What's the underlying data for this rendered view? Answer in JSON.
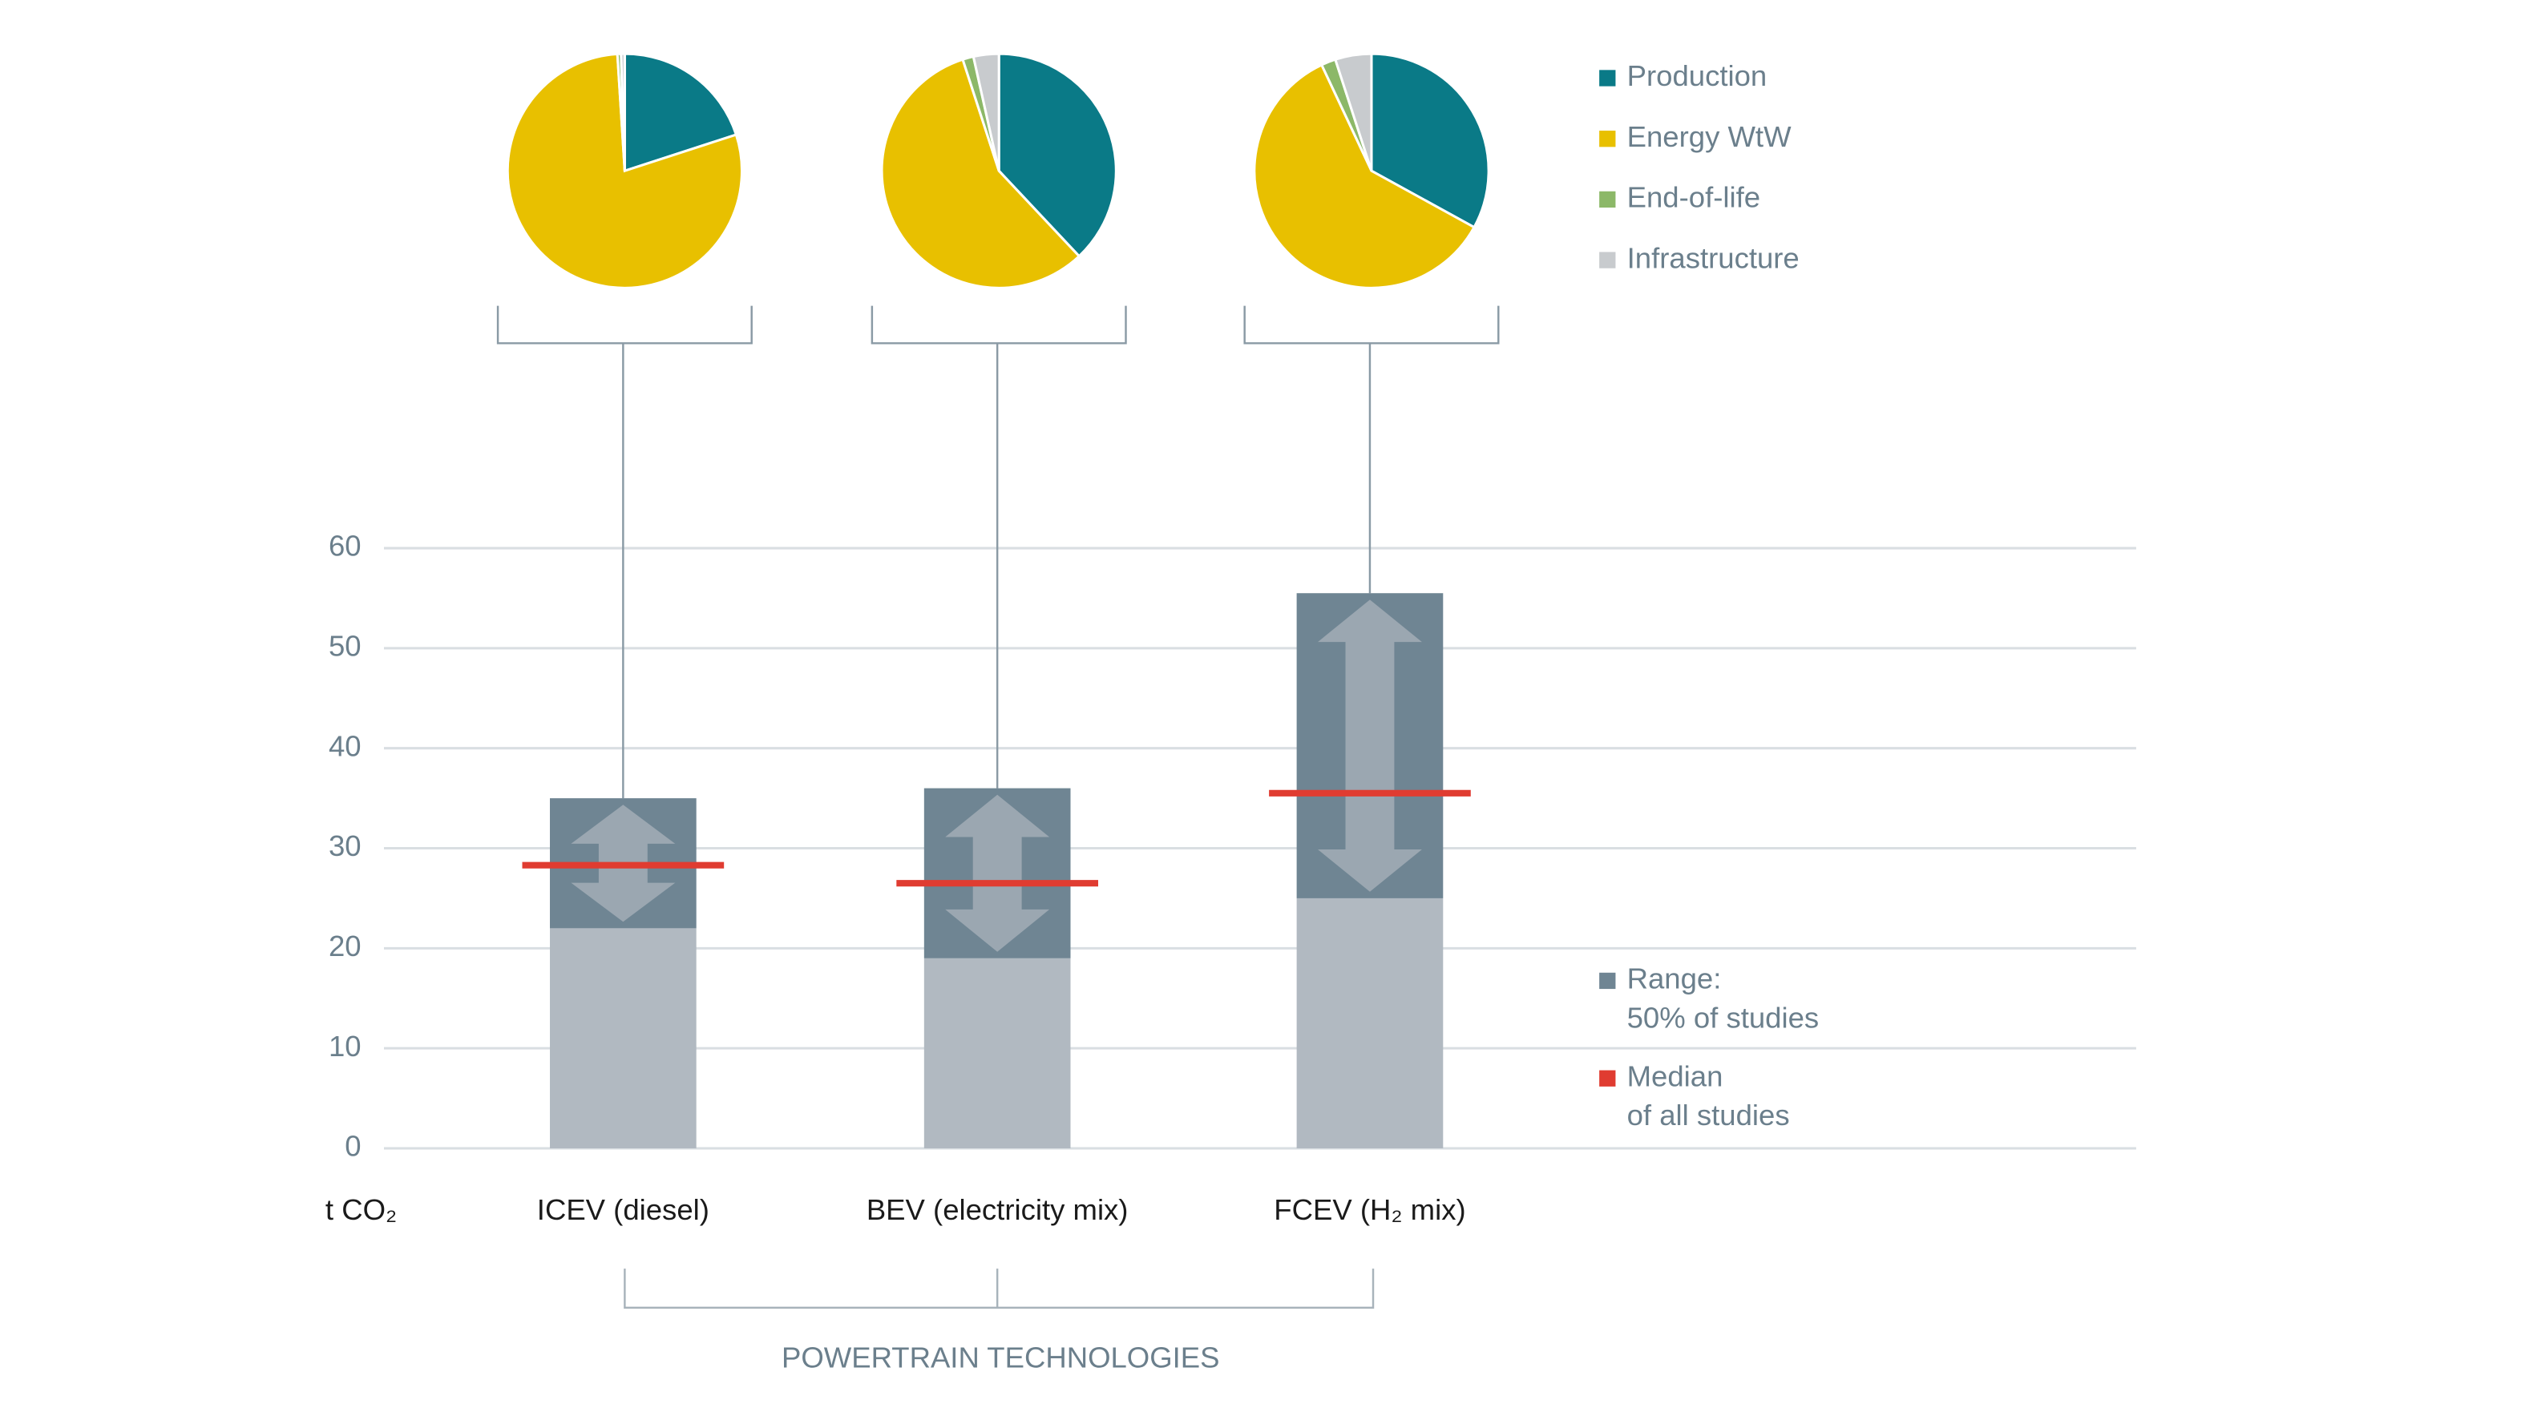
{
  "chart_data": {
    "type": "floating-bar",
    "categories": [
      "ICEV (diesel)",
      "BEV (electricity mix)",
      "FCEV (H₂ mix)"
    ],
    "low": [
      22,
      19,
      25
    ],
    "high": [
      35,
      36,
      55.5
    ],
    "median": [
      28.3,
      26.5,
      35.5
    ],
    "ylim": [
      0,
      60
    ],
    "yticks": [
      0,
      10,
      20,
      30,
      40,
      50,
      60
    ],
    "grid": true,
    "y_axis_label": "t CO₂",
    "x_axis_label": "POWERTRAIN TECHNOLOGIES",
    "range_color": "#6f8593",
    "base_color": "#b1b9c1",
    "arrow_color": "#9ba7b1",
    "median_color": "#e03c31",
    "range_legend": [
      "Range:",
      "50% of studies"
    ],
    "median_legend": [
      "Median",
      "of all studies"
    ],
    "pies": {
      "type": "pie",
      "categories": [
        "Production",
        "Energy WtW",
        "End-of-life",
        "Infrastructure"
      ],
      "colors": [
        "#0a7a87",
        "#e8c000",
        "#8cb868",
        "#c8cbce"
      ],
      "series": [
        {
          "values": [
            20,
            79,
            0.5,
            0.5
          ]
        },
        {
          "values": [
            38,
            57,
            1.5,
            3.5
          ]
        },
        {
          "values": [
            33,
            60,
            2,
            5
          ]
        }
      ]
    }
  }
}
